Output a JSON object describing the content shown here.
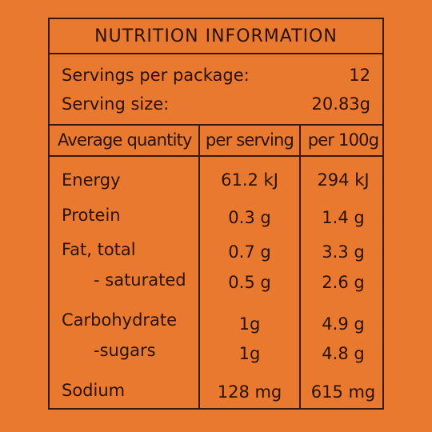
{
  "title": "NUTRITION INFORMATION",
  "servings_per_package": {
    "label": "Servings per package:",
    "value": "12"
  },
  "serving_size": {
    "label": "Serving size:",
    "value": "20.83g"
  },
  "columns": [
    "Average quantity",
    "per serving",
    "per 100g"
  ],
  "rows": [
    {
      "name": "Energy",
      "per_serving": "61.2 kJ",
      "per_100g": "294 kJ"
    },
    {
      "name": "Protein",
      "per_serving": "0.3 g",
      "per_100g": "1.4 g"
    },
    {
      "name": "Fat, total",
      "per_serving": "0.7 g",
      "per_100g": "3.3 g"
    },
    {
      "name": "- saturated",
      "per_serving": "0.5 g",
      "per_100g": "2.6 g"
    },
    {
      "name": "Carbohydrate",
      "per_serving": "1g",
      "per_100g": "4.9 g"
    },
    {
      "name": "-sugars",
      "per_serving": "1g",
      "per_100g": "4.8 g"
    },
    {
      "name": "Sodium",
      "per_serving": "128 mg",
      "per_100g": "615 mg"
    }
  ],
  "colors": {
    "background": "#E8792F",
    "ink": "#2a1205",
    "rule": "#3a1808"
  }
}
